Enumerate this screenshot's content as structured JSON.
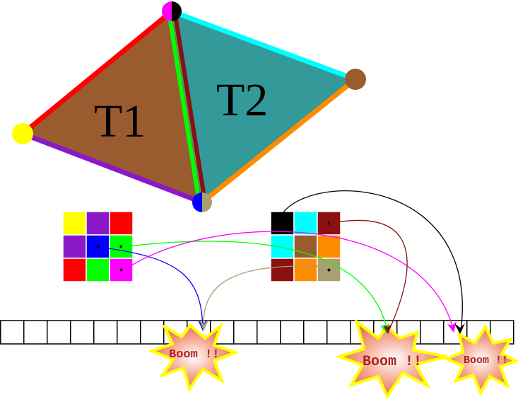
{
  "triangles": [
    {
      "label": "T1",
      "fill": "#9a5c2e"
    },
    {
      "label": "T2",
      "fill": "#339999"
    }
  ],
  "vertices": {
    "top": {
      "colors": [
        "#ff00ff",
        "#000000"
      ]
    },
    "left": {
      "colors": [
        "#ffff00"
      ]
    },
    "right": {
      "colors": [
        "#9a5c2e"
      ]
    },
    "bottom": {
      "colors": [
        "#0000ff",
        "#a8a070"
      ]
    }
  },
  "edges": {
    "left_top": "#ff0000",
    "left_bottom": "#8b18c8",
    "shared_t1_side": "#00ff00",
    "shared_t2_side": "#8b1010",
    "top_right": "#00ffff",
    "right_bottom": "#ff8c00"
  },
  "grid_left": {
    "cells": [
      "#ffff00",
      "#8b18c8",
      "#ff0000",
      "#8b18c8",
      "#0000ff",
      "#00ff00",
      "#ff0000",
      "#00ff00",
      "#ff00ff"
    ],
    "dotted_cells": [
      4,
      5,
      8
    ]
  },
  "grid_right": {
    "cells": [
      "#000000",
      "#00ffff",
      "#8b1010",
      "#00ffff",
      "#9a5c2e",
      "#ff8c00",
      "#8b1010",
      "#ff8c00",
      "#a8a070"
    ],
    "dotted_cells": [
      2,
      8
    ]
  },
  "array": {
    "cell_count": 22
  },
  "arrows": [
    {
      "color": "#0000ff"
    },
    {
      "color": "#00ff00"
    },
    {
      "color": "#ff00ff"
    },
    {
      "color": "#a8a070"
    },
    {
      "color": "#8b1010"
    },
    {
      "color": "#000000"
    }
  ],
  "booms": [
    {
      "label": "Boom !!"
    },
    {
      "label": "Boom !!"
    },
    {
      "label": "Boom !!"
    }
  ]
}
